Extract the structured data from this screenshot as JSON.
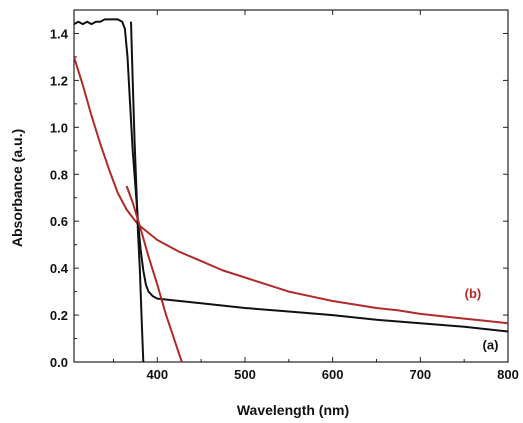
{
  "chart_data": {
    "type": "line",
    "xlabel": "Wavelength (nm)",
    "ylabel": "Absorbance (a.u.)",
    "xlim": [
      305,
      800
    ],
    "ylim": [
      0,
      1.5
    ],
    "x_ticks": [
      400,
      500,
      600,
      700,
      800
    ],
    "y_ticks": [
      0.0,
      0.2,
      0.4,
      0.6,
      0.8,
      1.0,
      1.2,
      1.4
    ],
    "x_tick_labels": [
      "400",
      "500",
      "600",
      "700",
      "800"
    ],
    "y_tick_labels": [
      "0.0",
      "0.2",
      "0.4",
      "0.6",
      "0.8",
      "1.0",
      "1.2",
      "1.4"
    ],
    "grid": false,
    "series": [
      {
        "label": "(a)",
        "color": "#111111",
        "points": [
          [
            305,
            1.44
          ],
          [
            310,
            1.45
          ],
          [
            315,
            1.44
          ],
          [
            320,
            1.45
          ],
          [
            325,
            1.44
          ],
          [
            330,
            1.45
          ],
          [
            335,
            1.45
          ],
          [
            340,
            1.46
          ],
          [
            345,
            1.46
          ],
          [
            350,
            1.46
          ],
          [
            355,
            1.46
          ],
          [
            360,
            1.45
          ],
          [
            363,
            1.42
          ],
          [
            366,
            1.3
          ],
          [
            369,
            1.1
          ],
          [
            372,
            0.9
          ],
          [
            375,
            0.75
          ],
          [
            378,
            0.6
          ],
          [
            381,
            0.48
          ],
          [
            384,
            0.39
          ],
          [
            387,
            0.33
          ],
          [
            390,
            0.3
          ],
          [
            395,
            0.28
          ],
          [
            400,
            0.27
          ],
          [
            450,
            0.25
          ],
          [
            500,
            0.23
          ],
          [
            550,
            0.215
          ],
          [
            600,
            0.2
          ],
          [
            650,
            0.18
          ],
          [
            700,
            0.165
          ],
          [
            750,
            0.15
          ],
          [
            800,
            0.13
          ]
        ]
      },
      {
        "label": "(b)",
        "color": "#b02a2a",
        "points": [
          [
            305,
            1.3
          ],
          [
            315,
            1.18
          ],
          [
            325,
            1.05
          ],
          [
            335,
            0.93
          ],
          [
            345,
            0.82
          ],
          [
            355,
            0.72
          ],
          [
            365,
            0.65
          ],
          [
            375,
            0.6
          ],
          [
            380,
            0.58
          ],
          [
            390,
            0.55
          ],
          [
            400,
            0.52
          ],
          [
            425,
            0.47
          ],
          [
            450,
            0.43
          ],
          [
            475,
            0.39
          ],
          [
            500,
            0.36
          ],
          [
            525,
            0.33
          ],
          [
            550,
            0.3
          ],
          [
            575,
            0.28
          ],
          [
            600,
            0.26
          ],
          [
            625,
            0.245
          ],
          [
            650,
            0.23
          ],
          [
            675,
            0.22
          ],
          [
            700,
            0.205
          ],
          [
            725,
            0.195
          ],
          [
            750,
            0.185
          ],
          [
            775,
            0.175
          ],
          [
            800,
            0.165
          ]
        ]
      },
      {
        "label": "",
        "color": "#111111",
        "points": [
          [
            370,
            1.45
          ],
          [
            372,
            1.2
          ],
          [
            374,
            0.95
          ],
          [
            376,
            0.75
          ],
          [
            378,
            0.55
          ],
          [
            380,
            0.4
          ],
          [
            382,
            0.2
          ],
          [
            384,
            0.0
          ]
        ]
      },
      {
        "label": "",
        "color": "#b02a2a",
        "points": [
          [
            365,
            0.75
          ],
          [
            372,
            0.68
          ],
          [
            380,
            0.58
          ],
          [
            390,
            0.45
          ],
          [
            400,
            0.33
          ],
          [
            410,
            0.2
          ],
          [
            420,
            0.09
          ],
          [
            428,
            0.0
          ]
        ]
      }
    ]
  }
}
